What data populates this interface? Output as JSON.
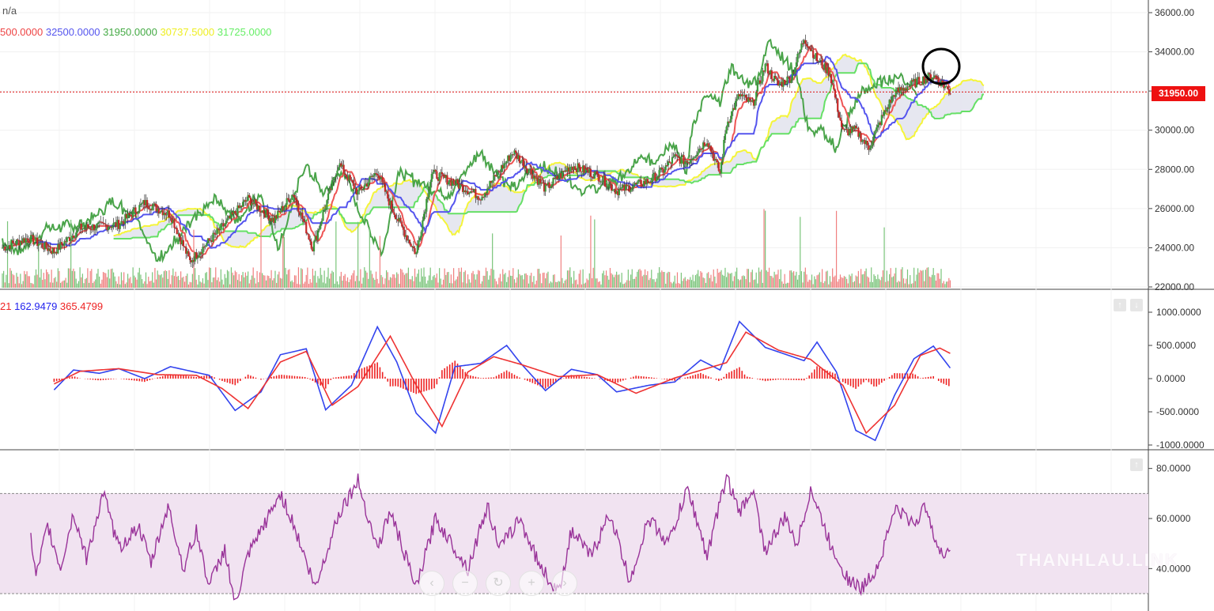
{
  "header": {
    "symbol": "n/a",
    "ichimoku_values": [
      {
        "text": "500.0000",
        "color": "#ee4444"
      },
      {
        "text": "32500.0000",
        "color": "#5555ee"
      },
      {
        "text": "31950.0000",
        "color": "#44aa44"
      },
      {
        "text": "30737.5000",
        "color": "#eeee22"
      },
      {
        "text": "31725.0000",
        "color": "#66ee66"
      }
    ]
  },
  "macd_legend": [
    {
      "text": "21",
      "color": "#ee2222"
    },
    {
      "text": "162.9479",
      "color": "#2222ee"
    },
    {
      "text": "365.4799",
      "color": "#ee2222"
    }
  ],
  "last_price_label": "31950.00",
  "watermark": "THANHLAU.LINK",
  "nav_buttons": [
    {
      "name": "scroll-left-icon",
      "glyph": "‹"
    },
    {
      "name": "zoom-out-icon",
      "glyph": "−"
    },
    {
      "name": "reset-icon",
      "glyph": "↻"
    },
    {
      "name": "zoom-in-icon",
      "glyph": "+"
    },
    {
      "name": "scroll-right-icon",
      "glyph": "›"
    }
  ],
  "pane_buttons": {
    "up": "↑",
    "down": "↓"
  },
  "colors": {
    "up_candle": "#3a9a3a",
    "down_candle": "#c62828",
    "tenkan": "#ee5555",
    "kijun": "#5555ee",
    "chikou": "#4aa44a",
    "senkou_a": "#f5f53a",
    "senkou_b": "#66e066",
    "macd_line": "#3344ee",
    "signal_line": "#ee3333",
    "rsi_line": "#993399",
    "rsi_band": "#f1e3f1"
  },
  "chart_data": [
    {
      "type": "candlestick",
      "title": "",
      "y_ticks": [
        "36000.00",
        "34000.00",
        "32000.00",
        "30000.00",
        "28000.00",
        "26000.00",
        "24000.00",
        "22000.00"
      ],
      "ylim": [
        22000,
        36000
      ],
      "last_price": 31950,
      "close_keypoints": [
        [
          0,
          24000
        ],
        [
          20,
          24500
        ],
        [
          40,
          23800
        ],
        [
          60,
          25000
        ],
        [
          90,
          25200
        ],
        [
          110,
          26300
        ],
        [
          130,
          25700
        ],
        [
          145,
          23300
        ],
        [
          165,
          24700
        ],
        [
          190,
          26500
        ],
        [
          210,
          25400
        ],
        [
          225,
          26800
        ],
        [
          240,
          24000
        ],
        [
          260,
          28300
        ],
        [
          275,
          26800
        ],
        [
          290,
          27900
        ],
        [
          300,
          26200
        ],
        [
          310,
          24900
        ],
        [
          320,
          23700
        ],
        [
          332,
          27800
        ],
        [
          350,
          27300
        ],
        [
          370,
          26600
        ],
        [
          395,
          28900
        ],
        [
          420,
          27000
        ],
        [
          440,
          28200
        ],
        [
          460,
          27700
        ],
        [
          475,
          26900
        ],
        [
          500,
          27400
        ],
        [
          510,
          27900
        ],
        [
          520,
          28600
        ],
        [
          530,
          28400
        ],
        [
          545,
          29500
        ],
        [
          555,
          27800
        ],
        [
          560,
          30300
        ],
        [
          570,
          31800
        ],
        [
          580,
          31300
        ],
        [
          590,
          33300
        ],
        [
          600,
          32300
        ],
        [
          610,
          32700
        ],
        [
          620,
          34700
        ],
        [
          630,
          33600
        ],
        [
          640,
          32900
        ],
        [
          650,
          29900
        ],
        [
          660,
          30000
        ],
        [
          670,
          29100
        ],
        [
          680,
          30600
        ],
        [
          690,
          31900
        ],
        [
          705,
          32400
        ],
        [
          720,
          32800
        ],
        [
          733,
          31950
        ]
      ],
      "volume_note": "volume bars along bottom of price pane"
    },
    {
      "type": "line",
      "title": "",
      "series": [
        {
          "name": "162.9479",
          "color": "#3344ee",
          "keypoints": [
            [
              40,
              -170
            ],
            [
              55,
              130
            ],
            [
              75,
              80
            ],
            [
              90,
              150
            ],
            [
              110,
              0
            ],
            [
              130,
              180
            ],
            [
              160,
              50
            ],
            [
              180,
              -480
            ],
            [
              200,
              -200
            ],
            [
              215,
              360
            ],
            [
              235,
              450
            ],
            [
              250,
              -470
            ],
            [
              270,
              -100
            ],
            [
              290,
              780
            ],
            [
              305,
              250
            ],
            [
              320,
              -520
            ],
            [
              335,
              -820
            ],
            [
              350,
              180
            ],
            [
              370,
              230
            ],
            [
              390,
              500
            ],
            [
              400,
              250
            ],
            [
              420,
              -180
            ],
            [
              440,
              140
            ],
            [
              460,
              60
            ],
            [
              475,
              -200
            ],
            [
              500,
              -100
            ],
            [
              520,
              -50
            ],
            [
              540,
              280
            ],
            [
              555,
              130
            ],
            [
              570,
              860
            ],
            [
              590,
              470
            ],
            [
              620,
              270
            ],
            [
              630,
              550
            ],
            [
              645,
              100
            ],
            [
              660,
              -780
            ],
            [
              675,
              -930
            ],
            [
              690,
              -250
            ],
            [
              705,
              300
            ],
            [
              720,
              490
            ],
            [
              733,
              160
            ]
          ]
        },
        {
          "name": "365.4799",
          "color": "#ee3333",
          "keypoints": [
            [
              40,
              -80
            ],
            [
              60,
              110
            ],
            [
              90,
              150
            ],
            [
              120,
              60
            ],
            [
              150,
              50
            ],
            [
              170,
              -150
            ],
            [
              190,
              -450
            ],
            [
              215,
              250
            ],
            [
              235,
              410
            ],
            [
              255,
              -400
            ],
            [
              275,
              -120
            ],
            [
              300,
              640
            ],
            [
              320,
              -100
            ],
            [
              340,
              -720
            ],
            [
              360,
              100
            ],
            [
              380,
              330
            ],
            [
              400,
              220
            ],
            [
              430,
              30
            ],
            [
              460,
              60
            ],
            [
              490,
              -220
            ],
            [
              520,
              10
            ],
            [
              560,
              240
            ],
            [
              575,
              700
            ],
            [
              600,
              430
            ],
            [
              625,
              290
            ],
            [
              650,
              -100
            ],
            [
              668,
              -820
            ],
            [
              690,
              -400
            ],
            [
              710,
              350
            ],
            [
              725,
              460
            ],
            [
              733,
              380
            ]
          ]
        }
      ],
      "histogram_note": "red bars = difference between lines",
      "y_ticks": [
        "1000.0000",
        "500.0000",
        "0.0000",
        "-500.0000",
        "-1000.0000"
      ],
      "ylim": [
        -1000,
        1000
      ]
    },
    {
      "type": "line",
      "title": "",
      "series": [
        {
          "name": "",
          "color": "#993399",
          "keypoints": [
            [
              22,
              52
            ],
            [
              26,
              36
            ],
            [
              35,
              57
            ],
            [
              45,
              40
            ],
            [
              55,
              62
            ],
            [
              65,
              44
            ],
            [
              78,
              70
            ],
            [
              90,
              48
            ],
            [
              105,
              57
            ],
            [
              115,
              42
            ],
            [
              128,
              65
            ],
            [
              140,
              40
            ],
            [
              150,
              55
            ],
            [
              160,
              33
            ],
            [
              172,
              48
            ],
            [
              180,
              25
            ],
            [
              190,
              45
            ],
            [
              205,
              60
            ],
            [
              215,
              70
            ],
            [
              225,
              58
            ],
            [
              242,
              32
            ],
            [
              260,
              62
            ],
            [
              275,
              75
            ],
            [
              290,
              48
            ],
            [
              300,
              63
            ],
            [
              320,
              32
            ],
            [
              335,
              60
            ],
            [
              350,
              48
            ],
            [
              360,
              40
            ],
            [
              375,
              65
            ],
            [
              385,
              48
            ],
            [
              400,
              60
            ],
            [
              415,
              42
            ],
            [
              430,
              30
            ],
            [
              440,
              55
            ],
            [
              455,
              45
            ],
            [
              470,
              62
            ],
            [
              485,
              35
            ],
            [
              500,
              60
            ],
            [
              515,
              50
            ],
            [
              530,
              72
            ],
            [
              545,
              45
            ],
            [
              560,
              77
            ],
            [
              570,
              62
            ],
            [
              580,
              72
            ],
            [
              590,
              47
            ],
            [
              605,
              60
            ],
            [
              615,
              50
            ],
            [
              625,
              72
            ],
            [
              640,
              50
            ],
            [
              655,
              35
            ],
            [
              665,
              32
            ],
            [
              678,
              42
            ],
            [
              690,
              64
            ],
            [
              705,
              58
            ],
            [
              715,
              65
            ],
            [
              725,
              45
            ],
            [
              733,
              48
            ]
          ]
        }
      ],
      "band": [
        30,
        70
      ],
      "y_ticks": [
        "80.0000",
        "60.0000",
        "40.0000"
      ],
      "ylim": [
        24,
        84
      ]
    }
  ]
}
